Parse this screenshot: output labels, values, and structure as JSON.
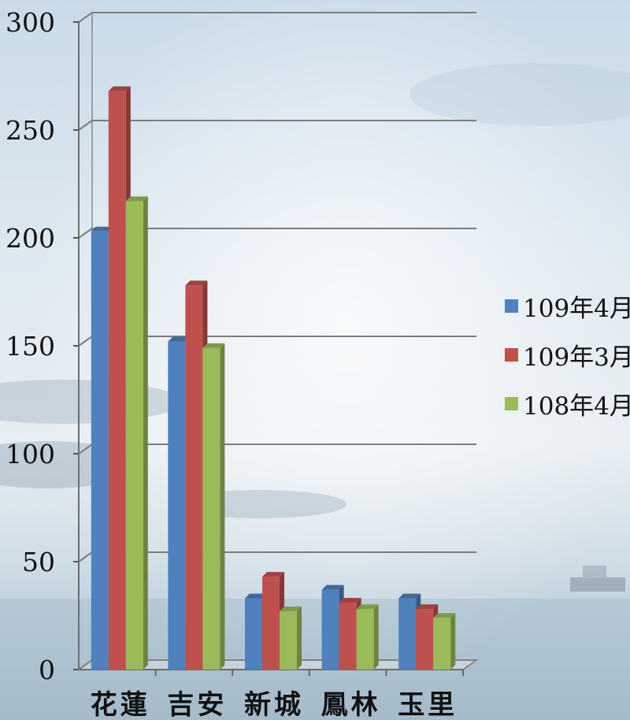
{
  "chart_data": {
    "type": "bar",
    "categories": [
      "花蓮",
      "吉安",
      "新城",
      "鳳林",
      "玉里"
    ],
    "series": [
      {
        "name": "109年4月",
        "values": [
          203,
          152,
          33,
          37,
          33
        ],
        "color": "#4f81bd"
      },
      {
        "name": "109年3月",
        "values": [
          268,
          178,
          43,
          31,
          28
        ],
        "color": "#c0504d"
      },
      {
        "name": "108年4月",
        "values": [
          217,
          149,
          27,
          28,
          24
        ],
        "color": "#9bbb59"
      }
    ],
    "ylim": [
      0,
      300
    ],
    "yticks": [
      0,
      50,
      100,
      150,
      200,
      250,
      300
    ],
    "title": "",
    "xlabel": "",
    "ylabel": "",
    "grid": true,
    "legend": "right",
    "style": "3d-clustered-column"
  }
}
